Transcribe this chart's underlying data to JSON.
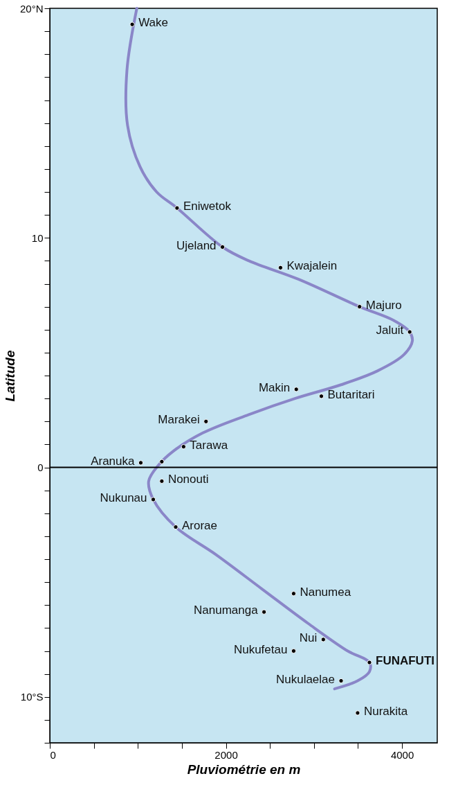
{
  "chart_data": {
    "type": "scatter",
    "xlabel": "Pluviométrie en m",
    "ylabel": "Latitude",
    "xlim": [
      0,
      4400
    ],
    "ylim": [
      -12,
      20
    ],
    "xticks": [
      0,
      {
        "value": 500,
        "label": null
      },
      {
        "value": 1000,
        "label": null
      },
      {
        "value": 1500,
        "label": null
      },
      2000,
      {
        "value": 2500,
        "label": null
      },
      {
        "value": 3000,
        "label": null
      },
      {
        "value": 3500,
        "label": null
      },
      4000
    ],
    "yticks": [
      {
        "value": -12,
        "label": null
      },
      {
        "value": -11,
        "label": null
      },
      {
        "value": -10,
        "label": "10°S"
      },
      {
        "value": -9,
        "label": null
      },
      {
        "value": -8,
        "label": null
      },
      {
        "value": -7,
        "label": null
      },
      {
        "value": -6,
        "label": null
      },
      {
        "value": -5,
        "label": null
      },
      {
        "value": -4,
        "label": null
      },
      {
        "value": -3,
        "label": null
      },
      {
        "value": -2,
        "label": null
      },
      {
        "value": -1,
        "label": null
      },
      0,
      {
        "value": 1,
        "label": null
      },
      {
        "value": 2,
        "label": null
      },
      {
        "value": 3,
        "label": null
      },
      {
        "value": 4,
        "label": null
      },
      {
        "value": 5,
        "label": null
      },
      {
        "value": 6,
        "label": null
      },
      {
        "value": 7,
        "label": null
      },
      {
        "value": 8,
        "label": null
      },
      {
        "value": 9,
        "label": null
      },
      10,
      {
        "value": 11,
        "label": null
      },
      {
        "value": 12,
        "label": null
      },
      {
        "value": 13,
        "label": null
      },
      {
        "value": 14,
        "label": null
      },
      {
        "value": 15,
        "label": null
      },
      {
        "value": 16,
        "label": null
      },
      {
        "value": 17,
        "label": null
      },
      {
        "value": 18,
        "label": null
      },
      {
        "value": 19,
        "label": null
      },
      {
        "value": 20,
        "label": "20°N"
      }
    ],
    "grid": false,
    "series": [
      {
        "type": "line",
        "color": "#8a86c8",
        "line_style": "solid",
        "marker": "none",
        "x": [
          988,
          876,
          883,
          1025,
          1213,
          1445,
          1961,
          2260,
          2822,
          3518,
          3907,
          4087,
          4117,
          4019,
          3720,
          3308,
          2784,
          2260,
          1737,
          1400,
          1235,
          1123,
          1175,
          1430,
          1886,
          2410,
          2934,
          3383,
          3630,
          3630,
          3496,
          3234
        ],
        "values": [
          20,
          17.3,
          14.9,
          13.1,
          12.0,
          11.3,
          9.6,
          9.0,
          8.2,
          7.0,
          6.4,
          5.9,
          5.5,
          4.9,
          4.2,
          3.6,
          3.0,
          2.3,
          1.5,
          0.7,
          0.1,
          -0.6,
          -1.4,
          -2.6,
          -3.8,
          -5.3,
          -6.8,
          -8.0,
          -8.5,
          -8.9,
          -9.3,
          -9.65
        ]
      },
      {
        "color": "#000000",
        "marker": "circle",
        "x": [
          936,
          1445,
          1961,
          2620,
          3518,
          4087,
          2799,
          3084,
          1774,
          1519,
          1033,
          1272,
          1272,
          1175,
          1430,
          2769,
          2433,
          3106,
          2769,
          3630,
          3308,
          3496
        ],
        "values": [
          19.3,
          11.3,
          9.6,
          8.7,
          7.0,
          5.9,
          3.4,
          3.1,
          2.0,
          0.9,
          0.2,
          0.25,
          -0.6,
          -1.4,
          -2.6,
          -5.5,
          -6.3,
          -7.5,
          -8.0,
          -8.5,
          -9.3,
          -10.7
        ]
      }
    ],
    "ref_lines": [
      {
        "axis": "y",
        "value": 0,
        "label": null,
        "color": "#000000",
        "line_style": "solid"
      }
    ],
    "annotations": [
      {
        "text": "Wake",
        "x": 936,
        "y": 19.3
      },
      {
        "text": "Eniwetok",
        "x": 1445,
        "y": 11.3
      },
      {
        "text": "Ujeland",
        "x": 1961,
        "y": 9.6
      },
      {
        "text": "Kwajalein",
        "x": 2620,
        "y": 8.7
      },
      {
        "text": "Majuro",
        "x": 3518,
        "y": 7.0
      },
      {
        "text": "Jaluit",
        "x": 4087,
        "y": 5.9
      },
      {
        "text": "Makin",
        "x": 2799,
        "y": 3.4
      },
      {
        "text": "Butaritari",
        "x": 3084,
        "y": 3.1
      },
      {
        "text": "Marakei",
        "x": 1774,
        "y": 2.0
      },
      {
        "text": "Tarawa",
        "x": 1519,
        "y": 0.9
      },
      {
        "text": "Aranuka",
        "x": 1033,
        "y": 0.2
      },
      {
        "text": "Nonouti",
        "x": 1272,
        "y": -0.6
      },
      {
        "text": "Nukunau",
        "x": 1175,
        "y": -1.4
      },
      {
        "text": "Arorae",
        "x": 1430,
        "y": -2.6
      },
      {
        "text": "Nanumea",
        "x": 2769,
        "y": -5.5
      },
      {
        "text": "Nanumanga",
        "x": 2433,
        "y": -6.3
      },
      {
        "text": "Nui",
        "x": 3106,
        "y": -7.5
      },
      {
        "text": "Nukufetau",
        "x": 2769,
        "y": -8.0
      },
      {
        "text": "FUNAFUTI",
        "x": 3630,
        "y": -8.5
      },
      {
        "text": "Nukulaelae",
        "x": 3308,
        "y": -9.3
      },
      {
        "text": "Nurakita",
        "x": 3496,
        "y": -10.7
      }
    ]
  }
}
